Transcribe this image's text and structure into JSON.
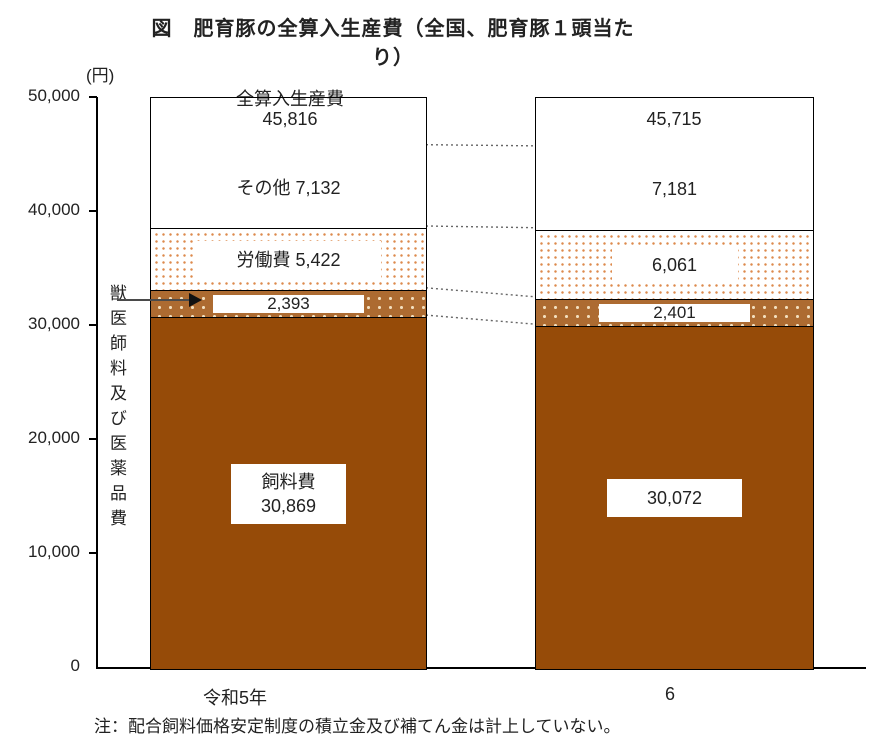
{
  "title": "図　肥育豚の全算入生産費（全国、肥育豚１頭当たり）",
  "axis_unit": "(円)",
  "note": "注：配合飼料価格安定制度の積立金及び補てん金は計上していない。",
  "total_header_label": "全算入生産費",
  "vet_axis_label": "獣医師料及び医薬品費",
  "colors": {
    "feed_solid": "#964B08",
    "vet_fill": "#AD6B31",
    "vet_dot": "#F3DFBE",
    "labor_dot": "#DD8A4D",
    "border": "#000000",
    "text": "#222222",
    "connector": "#666666"
  },
  "chart_data": {
    "type": "bar",
    "stacked": true,
    "title": "図　肥育豚の全算入生産費（全国、肥育豚１頭当たり）",
    "ylabel": "(円)",
    "ylim": [
      0,
      50000
    ],
    "ytick_step": 10000,
    "ytick_labels": [
      "0",
      "10,000",
      "20,000",
      "30,000",
      "40,000",
      "50,000"
    ],
    "grid": false,
    "legend": "none",
    "categories": [
      "令和5年",
      "6"
    ],
    "series": [
      {
        "name": "飼料費",
        "values": [
          30869,
          30072
        ]
      },
      {
        "name": "獣医師料及び医薬品費",
        "values": [
          2393,
          2401
        ]
      },
      {
        "name": "労働費",
        "values": [
          5422,
          6061
        ]
      },
      {
        "name": "その他",
        "values": [
          7132,
          7181
        ]
      }
    ],
    "totals": {
      "label": "全算入生産費",
      "values": [
        45816,
        45715
      ]
    },
    "bars": [
      {
        "category": "令和5年",
        "total_label": "45,816",
        "segments": [
          {
            "name": "飼料費",
            "value": 30869,
            "style": "solid-brown",
            "boxed": true,
            "label_lines": [
              "飼料費",
              "30,869"
            ]
          },
          {
            "name": "獣医師料及び医薬品費",
            "value": 2393,
            "style": "brown-dots",
            "boxed": true,
            "label_lines": [
              "2,393"
            ]
          },
          {
            "name": "労働費",
            "value": 5422,
            "style": "orange-dots",
            "boxed": true,
            "label_lines": [
              "労働費 5,422"
            ]
          },
          {
            "name": "その他",
            "value": 7132,
            "style": "white",
            "boxed": false,
            "label_lines": [
              "その他 7,132"
            ]
          }
        ]
      },
      {
        "category": "6",
        "total_label": "45,715",
        "segments": [
          {
            "name": "飼料費",
            "value": 30072,
            "style": "solid-brown",
            "boxed": true,
            "label_lines": [
              "30,072"
            ]
          },
          {
            "name": "獣医師料及び医薬品費",
            "value": 2401,
            "style": "brown-dots",
            "boxed": true,
            "label_lines": [
              "2,401"
            ]
          },
          {
            "name": "労働費",
            "value": 6061,
            "style": "orange-dots",
            "boxed": true,
            "label_lines": [
              "6,061"
            ]
          },
          {
            "name": "その他",
            "value": 7181,
            "style": "white",
            "boxed": false,
            "label_lines": [
              "7,181"
            ]
          }
        ]
      }
    ]
  }
}
